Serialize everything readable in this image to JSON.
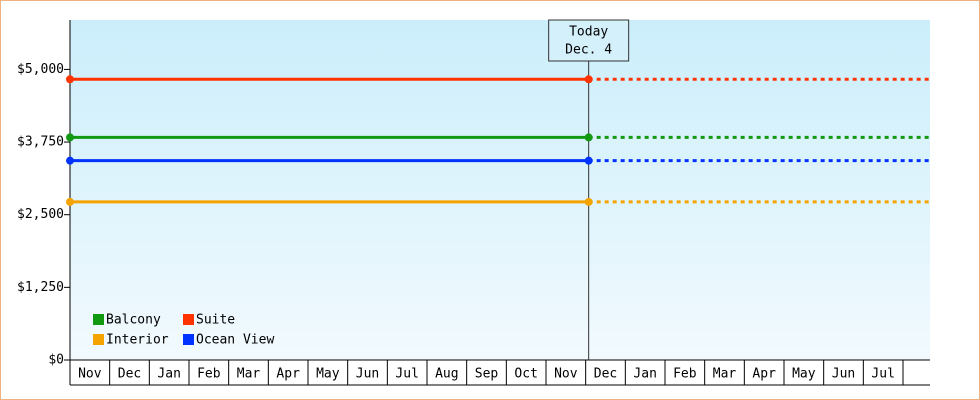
{
  "chart_data": {
    "type": "line",
    "categories": [
      "Nov",
      "Dec",
      "Jan",
      "Feb",
      "Mar",
      "Apr",
      "May",
      "Jun",
      "Jul",
      "Aug",
      "Sep",
      "Oct",
      "Nov",
      "Dec",
      "Jan",
      "Feb",
      "Mar",
      "Apr",
      "May",
      "Jun",
      "Jul"
    ],
    "today_index": 13,
    "today_label": [
      "Today",
      "Dec. 4"
    ],
    "series": [
      {
        "name": "Balcony",
        "color": "#119911",
        "value": 3830
      },
      {
        "name": "Suite",
        "color": "#ff3300",
        "value": 4830
      },
      {
        "name": "Interior",
        "color": "#f5a300",
        "value": 2720
      },
      {
        "name": "Ocean View",
        "color": "#0033ff",
        "value": 3430
      }
    ],
    "ylim": [
      0,
      5850
    ],
    "yticks": [
      {
        "value": 0,
        "label": "$0"
      },
      {
        "value": 1250,
        "label": "$1,250"
      },
      {
        "value": 2500,
        "label": "$2,500"
      },
      {
        "value": 3750,
        "label": "$3,750"
      },
      {
        "value": 5000,
        "label": "$5,000"
      }
    ]
  }
}
